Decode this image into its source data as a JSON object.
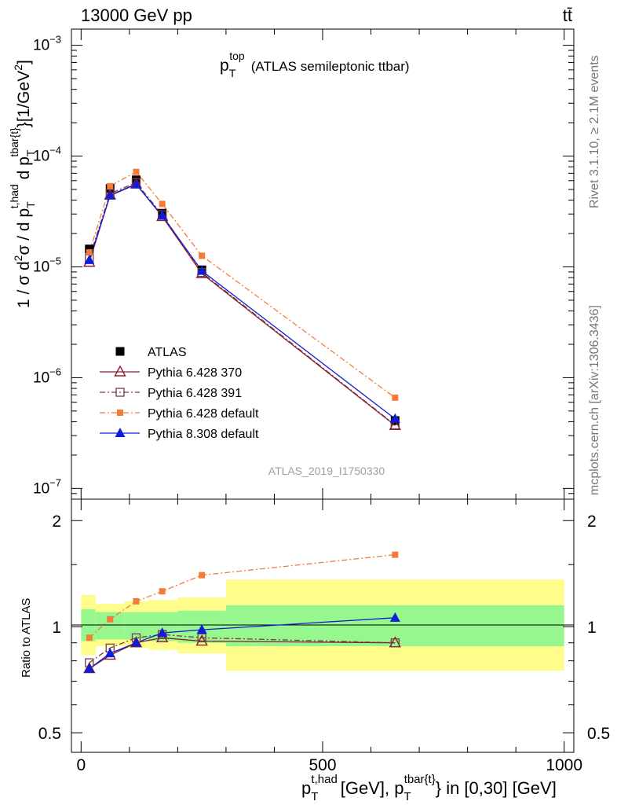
{
  "header": {
    "energy_label": "13000 GeV pp",
    "process_label": "tt̄"
  },
  "side_labels": {
    "rivet": "Rivet 3.1.10, ≥ 2.1M events",
    "mcplots": "mcplots.cern.ch [arXiv:1306.3436]"
  },
  "watermark": "ATLAS_2019_I1750330",
  "chart_data": [
    {
      "type": "line",
      "title": "p_T^top (ATLAS semileptonic ttbar)",
      "title_main": "p",
      "title_sub": "T",
      "title_sup": "top",
      "title_rest": "(ATLAS semileptonic ttbar)",
      "ylabel": "1 / σ d²σ / d p_T^{t,had} d p_T^{tbar{t}} [1/GeV²]",
      "ylabel_text1": "1 / σ d",
      "ylabel_sup2a": "2",
      "ylabel_text2": "σ / d p",
      "ylabel_sub_T": "T",
      "ylabel_sup_thad": "t,had",
      "ylabel_text3": " d p",
      "ylabel_sup_tbar": "tbar{t}",
      "ylabel_text4": "}[1/GeV",
      "ylabel_sup2b": "2",
      "ylabel_text5": "]",
      "yscale": "log",
      "xlim": [
        -20,
        1020
      ],
      "ylim": [
        8e-08,
        0.0014
      ],
      "y_ticks": [
        {
          "value": 1e-07,
          "base": "10",
          "exp": "−7"
        },
        {
          "value": 1e-06,
          "base": "10",
          "exp": "−6"
        },
        {
          "value": 1e-05,
          "base": "10",
          "exp": "−5"
        },
        {
          "value": 0.0001,
          "base": "10",
          "exp": "−4"
        },
        {
          "value": 0.001,
          "base": "10",
          "exp": "−3"
        }
      ],
      "x": [
        17,
        60,
        114,
        168,
        250,
        650
      ],
      "series": [
        {
          "name": "ATLAS",
          "color": "#000000",
          "marker": "square-filled",
          "line": "none",
          "values": [
            1.45e-05,
            5.1e-05,
            6.1e-05,
            3.05e-05,
            9.4e-06,
            4.1e-07
          ]
        },
        {
          "name": "Pythia 6.428 370",
          "color": "#8b1c2a",
          "marker": "triangle-open",
          "line": "solid",
          "values": [
            1.1e-05,
            4.45e-05,
            5.6e-05,
            2.85e-05,
            8.7e-06,
            3.7e-07
          ]
        },
        {
          "name": "Pythia 6.428 391",
          "color": "#7a3b4a",
          "marker": "square-open",
          "line": "dashdot",
          "values": [
            1.2e-05,
            4.6e-05,
            5.75e-05,
            2.95e-05,
            8.9e-06,
            3.75e-07
          ]
        },
        {
          "name": "Pythia 6.428 default",
          "color": "#f47c38",
          "marker": "square-filled-small",
          "line": "dashdot",
          "values": [
            1.35e-05,
            5.35e-05,
            7.2e-05,
            3.7e-05,
            1.26e-05,
            6.6e-07
          ]
        },
        {
          "name": "Pythia 8.308 default",
          "color": "#0f1ed4",
          "marker": "triangle-filled",
          "line": "solid",
          "values": [
            1.15e-05,
            4.4e-05,
            5.55e-05,
            2.9e-05,
            9.2e-06,
            4.25e-07
          ]
        }
      ],
      "legend": "left"
    },
    {
      "type": "line",
      "ylabel": "Ratio to ATLAS",
      "xlabel": "p_T^{t,had} [GeV], p_T^{tbar{t}} in [0,30] [GeV]",
      "xlabel_p1": "p",
      "xlabel_sub1": "T",
      "xlabel_sup1": "t,had",
      "xlabel_text1": "[GeV], p",
      "xlabel_sub2": "T",
      "xlabel_sup2": "tbar{t}",
      "xlabel_text2": "} in [0,30] [GeV]",
      "xlim": [
        -20,
        1020
      ],
      "ylim": [
        0.44,
        2.3
      ],
      "x_ticks": [
        0,
        500,
        1000
      ],
      "x_tick_labels": [
        "0",
        "500",
        "1000"
      ],
      "y_ticks": [
        0.5,
        1,
        2
      ],
      "y_tick_labels": [
        "0.5",
        "1",
        "2"
      ],
      "bands": [
        {
          "x0": 0,
          "x1": 30,
          "yellow": [
            0.83,
            1.23
          ],
          "green": [
            0.91,
            1.12
          ]
        },
        {
          "x0": 30,
          "x1": 90,
          "yellow": [
            0.88,
            1.16
          ],
          "green": [
            0.92,
            1.1
          ]
        },
        {
          "x0": 90,
          "x1": 140,
          "yellow": [
            0.87,
            1.18
          ],
          "green": [
            0.92,
            1.1
          ]
        },
        {
          "x0": 140,
          "x1": 200,
          "yellow": [
            0.86,
            1.19
          ],
          "green": [
            0.91,
            1.1
          ]
        },
        {
          "x0": 200,
          "x1": 300,
          "yellow": [
            0.84,
            1.21
          ],
          "green": [
            0.9,
            1.11
          ]
        },
        {
          "x0": 300,
          "x1": 1000,
          "yellow": [
            0.75,
            1.36
          ],
          "green": [
            0.88,
            1.15
          ]
        }
      ],
      "x": [
        17,
        60,
        114,
        168,
        250,
        650
      ],
      "series": [
        {
          "name": "Pythia 6.428 370",
          "color": "#8b1c2a",
          "marker": "triangle-open",
          "line": "solid",
          "values": [
            0.76,
            0.83,
            0.9,
            0.93,
            0.91,
            0.9
          ]
        },
        {
          "name": "Pythia 6.428 391",
          "color": "#7a3b4a",
          "marker": "square-open",
          "line": "dashdot",
          "values": [
            0.79,
            0.87,
            0.93,
            0.95,
            0.93,
            0.9
          ]
        },
        {
          "name": "Pythia 6.428 default",
          "color": "#f47c38",
          "marker": "square-filled-small",
          "line": "dashdot",
          "values": [
            0.93,
            1.05,
            1.18,
            1.26,
            1.4,
            1.6
          ]
        },
        {
          "name": "Pythia 8.308 default",
          "color": "#0f1ed4",
          "marker": "triangle-filled",
          "line": "solid",
          "values": [
            0.76,
            0.84,
            0.9,
            0.96,
            0.98,
            1.06
          ]
        }
      ]
    }
  ]
}
